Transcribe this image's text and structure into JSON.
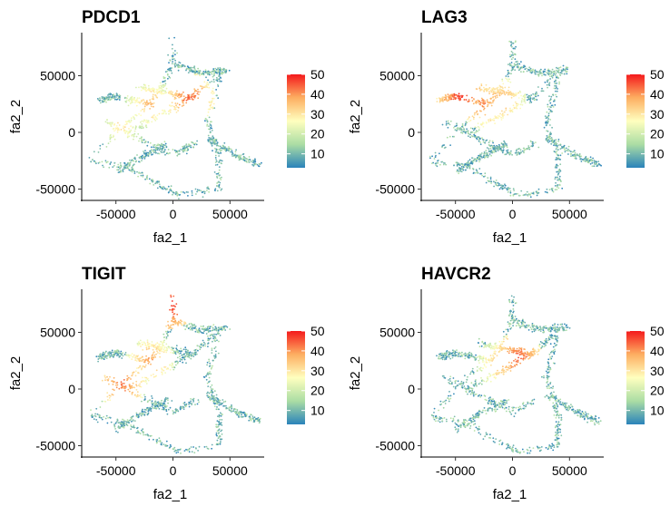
{
  "chart_data": [
    {
      "type": "scatter",
      "title": "PDCD1",
      "xlabel": "fa2_1",
      "ylabel": "fa2_2",
      "xlim": [
        -80000,
        80000
      ],
      "ylim": [
        -60000,
        88000
      ],
      "xticks": [
        -50000,
        0,
        50000
      ],
      "yticks": [
        -50000,
        0,
        50000
      ],
      "legend": {
        "ticks": [
          10,
          20,
          30,
          40,
          50
        ],
        "range": [
          3,
          50
        ],
        "placement": "right"
      },
      "hotspots": [
        {
          "x": 15000,
          "y": 30000,
          "level": 45
        },
        {
          "x": -20000,
          "y": 25000,
          "level": 38
        },
        {
          "x": -45000,
          "y": 5000,
          "level": 32
        }
      ]
    },
    {
      "type": "scatter",
      "title": "LAG3",
      "xlabel": "fa2_1",
      "ylabel": "fa2_2",
      "xlim": [
        -80000,
        80000
      ],
      "ylim": [
        -60000,
        88000
      ],
      "xticks": [
        -50000,
        0,
        50000
      ],
      "yticks": [
        -50000,
        0,
        50000
      ],
      "legend": {
        "ticks": [
          10,
          20,
          30,
          40,
          50
        ],
        "range": [
          3,
          50
        ],
        "placement": "right"
      },
      "hotspots": [
        {
          "x": -45000,
          "y": 32000,
          "level": 48
        },
        {
          "x": -25000,
          "y": 25000,
          "level": 42
        },
        {
          "x": -10000,
          "y": 28000,
          "level": 40
        }
      ]
    },
    {
      "type": "scatter",
      "title": "TIGIT",
      "xlabel": "fa2_1",
      "ylabel": "fa2_2",
      "xlim": [
        -80000,
        80000
      ],
      "ylim": [
        -60000,
        88000
      ],
      "xticks": [
        -50000,
        0,
        50000
      ],
      "yticks": [
        -50000,
        0,
        50000
      ],
      "legend": {
        "ticks": [
          10,
          20,
          30,
          40,
          50
        ],
        "range": [
          3,
          50
        ],
        "placement": "right"
      },
      "hotspots": [
        {
          "x": -2000,
          "y": 75000,
          "level": 50
        },
        {
          "x": -45000,
          "y": 5000,
          "level": 44
        },
        {
          "x": -20000,
          "y": 25000,
          "level": 40
        }
      ]
    },
    {
      "type": "scatter",
      "title": "HAVCR2",
      "xlabel": "fa2_1",
      "ylabel": "fa2_2",
      "xlim": [
        -80000,
        80000
      ],
      "ylim": [
        -60000,
        88000
      ],
      "xticks": [
        -50000,
        0,
        50000
      ],
      "yticks": [
        -50000,
        0,
        50000
      ],
      "legend": {
        "ticks": [
          10,
          20,
          30,
          40,
          50
        ],
        "range": [
          3,
          50
        ],
        "placement": "right"
      },
      "hotspots": [
        {
          "x": 5000,
          "y": 28000,
          "level": 46
        },
        {
          "x": -10000,
          "y": 22000,
          "level": 38
        }
      ]
    }
  ],
  "colors": {
    "scale": [
      "#2b83ba",
      "#abdda4",
      "#ffffbf",
      "#fdae61",
      "#f4191c"
    ],
    "low_point": "#1f78b4"
  }
}
